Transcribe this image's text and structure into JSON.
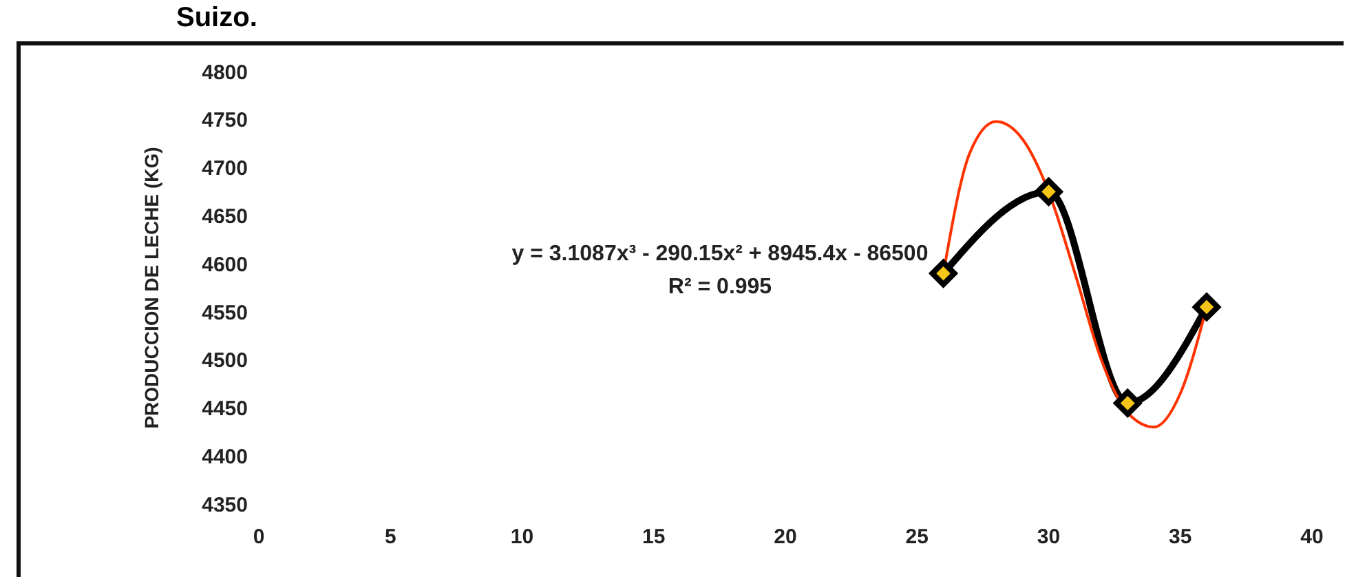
{
  "chart_data": {
    "type": "line",
    "title": "Suizo.",
    "ylabel": "PRODUCCION DE LECHE (KG)",
    "xlim": [
      0,
      40
    ],
    "xticks": [
      0,
      5,
      10,
      15,
      20,
      25,
      30,
      35,
      40
    ],
    "ylim": [
      4350,
      4800
    ],
    "yticks": [
      4350,
      4400,
      4450,
      4500,
      4550,
      4600,
      4650,
      4700,
      4750,
      4800
    ],
    "marker": "diamond",
    "line_style": "solid",
    "annotations": [
      "y = 3.1087x³ - 290.15x² + 8945.4x - 86500",
      "R² = 0.995"
    ],
    "series": [
      {
        "type": "line",
        "color": "#000000",
        "x": [
          26,
          30,
          33,
          36
        ],
        "values": [
          4590,
          4675,
          4455,
          4555
        ]
      },
      {
        "type": "line",
        "color": "#ff3300",
        "marker": "none",
        "x": [
          26,
          27,
          28,
          29,
          30,
          31,
          32,
          33,
          34,
          35,
          36
        ],
        "values": [
          4590,
          4715,
          4748,
          4730,
          4675,
          4590,
          4500,
          4445,
          4430,
          4465,
          4555
        ]
      }
    ]
  }
}
